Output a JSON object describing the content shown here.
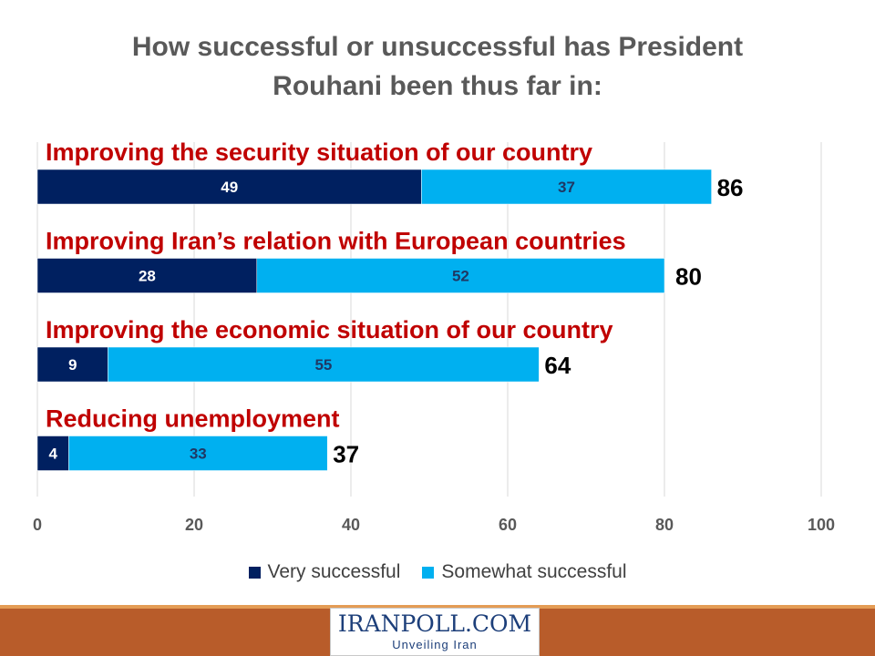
{
  "title_lines": [
    "How successful or unsuccessful has President",
    "Rouhani been thus far in:"
  ],
  "chart_data": {
    "type": "bar",
    "orientation": "horizontal",
    "stacked": true,
    "categories": [
      "Improving the security situation of our country",
      "Improving Iran’s relation with European countries",
      "Improving the economic situation of our country",
      "Reducing unemployment"
    ],
    "series": [
      {
        "name": "Very successful",
        "color": "#002060",
        "values": [
          49,
          28,
          9,
          4
        ]
      },
      {
        "name": "Somewhat successful",
        "color": "#00b0f0",
        "values": [
          37,
          52,
          55,
          33
        ]
      }
    ],
    "totals": [
      86,
      80,
      64,
      37
    ],
    "xlim": [
      0,
      100
    ],
    "xticks": [
      "0",
      "20",
      "40",
      "60",
      "80",
      "100"
    ],
    "category_label_color": "#c00000",
    "grid": true,
    "legend_position": "bottom"
  },
  "legend": [
    {
      "label": "Very successful",
      "color": "#002060"
    },
    {
      "label": "Somewhat successful",
      "color": "#00b0f0"
    }
  ],
  "logo": {
    "name": "IRANPOLL.COM",
    "tagline": "Unveiling Iran"
  },
  "colors": {
    "footer": "#b85c2a",
    "footer_line": "#e49c55",
    "title": "#595959"
  }
}
